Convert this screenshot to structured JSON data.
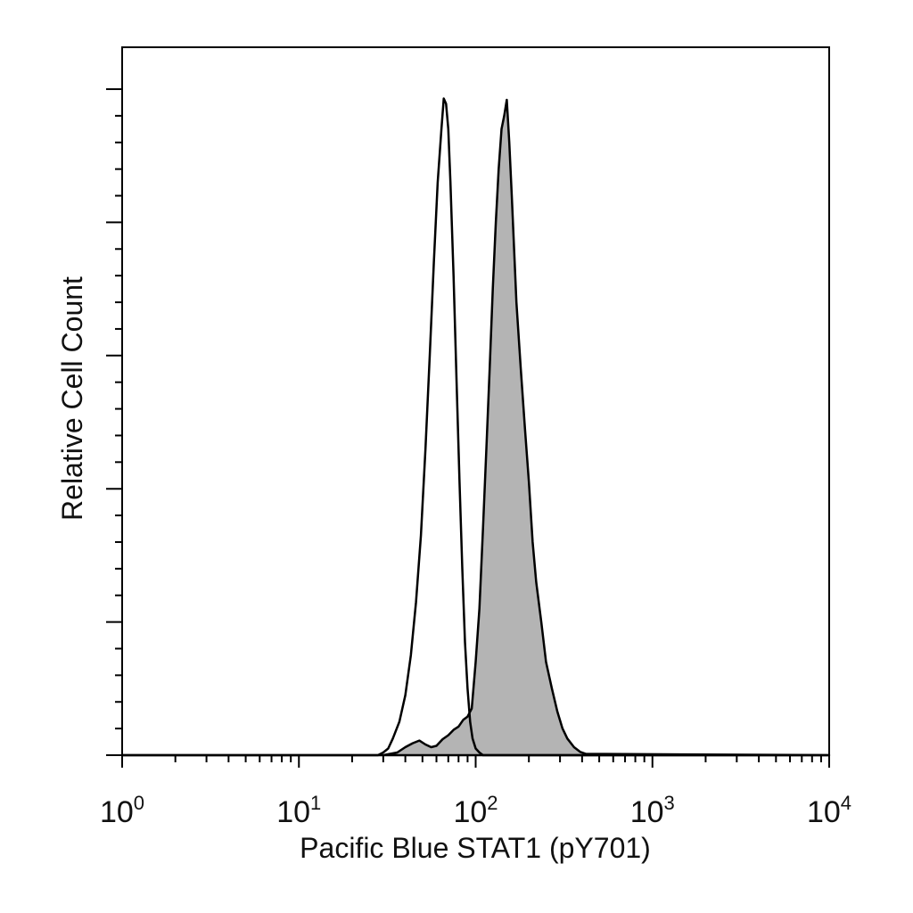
{
  "chart_data": {
    "type": "area",
    "title": "",
    "xlabel": "Pacific Blue STAT1 (pY701)",
    "ylabel": "Relative Cell Count",
    "x_scale": "log",
    "xlim": [
      1,
      10000
    ],
    "ylim": [
      0,
      100
    ],
    "grid": false,
    "x_ticks": [
      {
        "base": "10",
        "exp": "0",
        "value": 1
      },
      {
        "base": "10",
        "exp": "1",
        "value": 10
      },
      {
        "base": "10",
        "exp": "2",
        "value": 100
      },
      {
        "base": "10",
        "exp": "3",
        "value": 1000
      },
      {
        "base": "10",
        "exp": "4",
        "value": 10000
      }
    ],
    "series": [
      {
        "style": "outline",
        "stroke_color": "#000000",
        "x": [
          1,
          28,
          30,
          32,
          34,
          37,
          40,
          43,
          46,
          49,
          52,
          55,
          58,
          61,
          64,
          66,
          68,
          70,
          72,
          75,
          78,
          81,
          84,
          87,
          90,
          93,
          96,
          100,
          105,
          110,
          10000
        ],
        "y": [
          0,
          0,
          0.4,
          1,
          2.5,
          5,
          9,
          15,
          23,
          33,
          46,
          60,
          74,
          86,
          94,
          98.6,
          97.8,
          94,
          86,
          72,
          56,
          41,
          28,
          17,
          10,
          5,
          2.5,
          1,
          0.4,
          0,
          0
        ]
      },
      {
        "style": "filled",
        "fill_color": "#b4b4b4",
        "stroke_color": "#000000",
        "x": [
          1,
          30,
          36,
          40,
          44,
          48,
          52,
          56,
          60,
          65,
          70,
          75,
          80,
          85,
          90,
          95,
          100,
          105,
          110,
          115,
          120,
          125,
          130,
          135,
          140,
          145,
          150,
          155,
          160,
          165,
          170,
          180,
          190,
          200,
          210,
          220,
          235,
          250,
          270,
          290,
          310,
          330,
          360,
          390,
          420,
          10000
        ],
        "y": [
          0,
          0,
          0.4,
          1.2,
          1.8,
          2.2,
          1.6,
          1.2,
          1.4,
          2.4,
          3.0,
          3.8,
          4.3,
          5.3,
          5.8,
          7.0,
          14,
          22,
          34,
          46,
          58,
          70,
          80,
          88,
          94,
          96,
          98.4,
          92,
          84,
          76,
          68,
          58,
          49,
          41,
          32,
          26,
          20,
          14,
          10,
          6.5,
          4,
          2.5,
          1.2,
          0.5,
          0.2,
          0
        ]
      }
    ]
  }
}
